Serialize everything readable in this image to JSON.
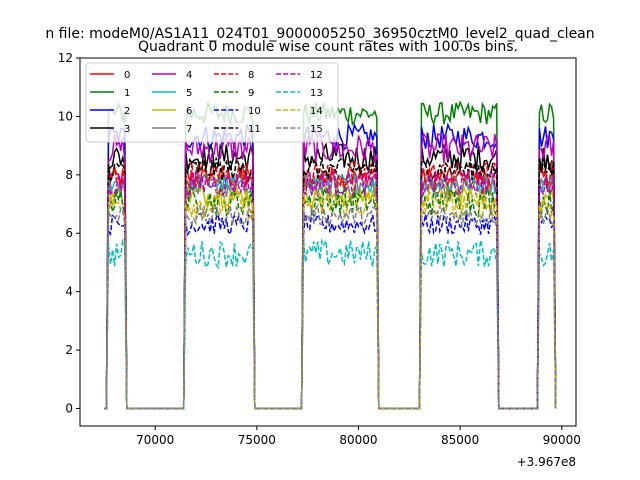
{
  "chart_data": {
    "type": "line",
    "suptitle": "n file: modeM0/AS1A11_024T01_9000005250_36950cztM0_level2_quad_clean",
    "title": "Quadrant 0 module wise count rates with 100.0s bins.",
    "xlabel": "",
    "ylabel": "",
    "x_offset_label": "+3.967e8",
    "xlim": [
      66300,
      90700
    ],
    "ylim": [
      -0.6,
      12
    ],
    "x_ticks": [
      70000,
      75000,
      80000,
      85000,
      90000
    ],
    "y_ticks": [
      0,
      2,
      4,
      6,
      8,
      10,
      12
    ],
    "legend_position": "upper-left",
    "legend_columns": 4,
    "active_intervals": [
      [
        67700,
        68500
      ],
      [
        71500,
        74800
      ],
      [
        77300,
        80900
      ],
      [
        83100,
        86800
      ],
      [
        88900,
        89600
      ]
    ],
    "series": [
      {
        "name": "0",
        "color": "#ff0000",
        "style": "solid",
        "level": 7.9
      },
      {
        "name": "1",
        "color": "#008000",
        "style": "solid",
        "level": 10.1
      },
      {
        "name": "2",
        "color": "#0000ff",
        "style": "solid",
        "level": 9.3
      },
      {
        "name": "3",
        "color": "#000000",
        "style": "solid",
        "level": 8.6
      },
      {
        "name": "4",
        "color": "#bf00bf",
        "style": "solid",
        "level": 8.9
      },
      {
        "name": "5",
        "color": "#00bfbf",
        "style": "solid",
        "level": 7.7
      },
      {
        "name": "6",
        "color": "#bfbf00",
        "style": "solid",
        "level": 7.3
      },
      {
        "name": "7",
        "color": "#808080",
        "style": "solid",
        "level": 7.6
      },
      {
        "name": "8",
        "color": "#ff0000",
        "style": "dashed",
        "level": 8.0
      },
      {
        "name": "9",
        "color": "#008000",
        "style": "dashed",
        "level": 7.1
      },
      {
        "name": "10",
        "color": "#0000ff",
        "style": "dashed",
        "level": 6.3
      },
      {
        "name": "11",
        "color": "#000000",
        "style": "dashed",
        "level": 8.2
      },
      {
        "name": "12",
        "color": "#bf00bf",
        "style": "dashed",
        "level": 7.7
      },
      {
        "name": "13",
        "color": "#00bfbf",
        "style": "dashed",
        "level": 5.3
      },
      {
        "name": "14",
        "color": "#dab000",
        "style": "dashed",
        "level": 7.0
      },
      {
        "name": "15",
        "color": "#808080",
        "style": "dashed",
        "level": 6.6
      }
    ]
  }
}
